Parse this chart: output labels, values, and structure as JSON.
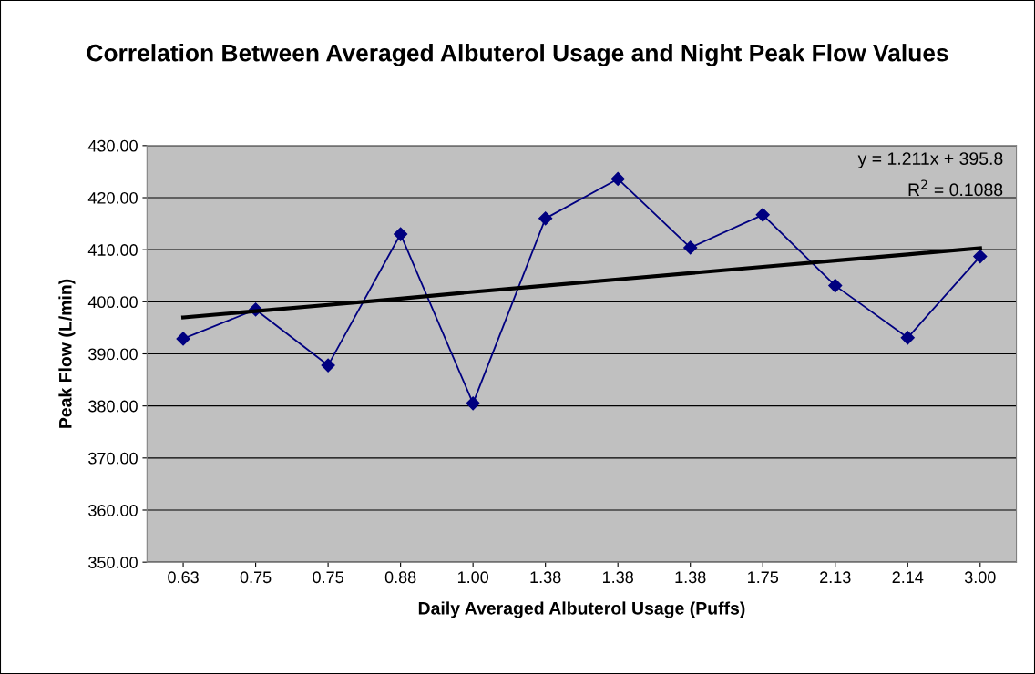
{
  "chart_data": {
    "type": "line",
    "title": "Correlation Between Averaged Albuterol Usage and Night Peak Flow Values",
    "xlabel": "Daily Averaged Albuterol Usage (Puffs)",
    "ylabel": "Peak Flow (L/min)",
    "categories": [
      "0.63",
      "0.75",
      "0.75",
      "0.88",
      "1.00",
      "1.38",
      "1.38",
      "1.38",
      "1.75",
      "2.13",
      "2.14",
      "3.00"
    ],
    "series": [
      {
        "color": "#000080",
        "marker": "diamond",
        "values": [
          392.9,
          398.5,
          387.8,
          413.0,
          380.5,
          416.0,
          423.6,
          410.4,
          416.7,
          403.1,
          393.1,
          408.7
        ]
      },
      {
        "color": "#000000",
        "marker": "none",
        "values": [
          397.0,
          398.2,
          399.4,
          400.6,
          401.9,
          403.1,
          404.3,
          405.5,
          406.7,
          407.9,
          409.1,
          410.3
        ]
      }
    ],
    "ylim": [
      350,
      430
    ],
    "yticks": [
      {
        "value": 350,
        "label": "350.00"
      },
      {
        "value": 360,
        "label": "360.00"
      },
      {
        "value": 370,
        "label": "370.00"
      },
      {
        "value": 380,
        "label": "380.00"
      },
      {
        "value": 390,
        "label": "390.00"
      },
      {
        "value": 400,
        "label": "400.00"
      },
      {
        "value": 410,
        "label": "410.00"
      },
      {
        "value": 420,
        "label": "420.00"
      },
      {
        "value": 430,
        "label": "430.00"
      }
    ],
    "annotations": [
      "y = 1.211x + 395.8",
      "R$^{2}$ = 0.1088"
    ],
    "grid": "y",
    "legend": false
  }
}
